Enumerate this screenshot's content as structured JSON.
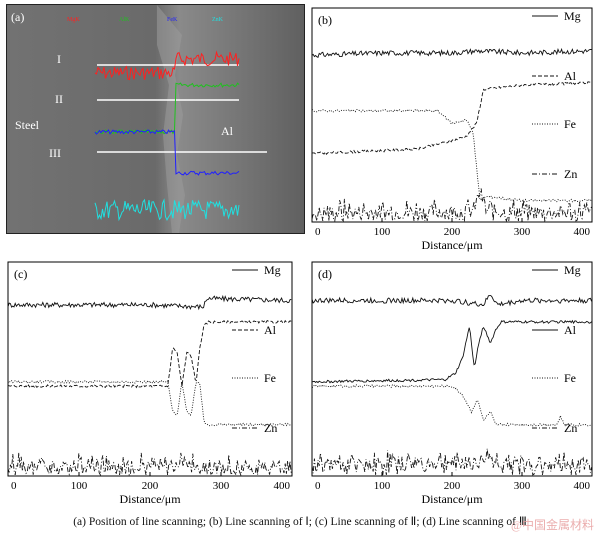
{
  "caption": "(a) Position of line scanning; (b) Line scanning of Ⅰ; (c) Line scanning of Ⅱ; (d) Line scanning of Ⅲ",
  "watermark": "@中国金属材料",
  "sem": {
    "label": "(a)",
    "legend": [
      "MgK",
      "AlK",
      "FeK",
      "ZnK"
    ],
    "legend_colors": [
      "#ff2020",
      "#20c020",
      "#2020ff",
      "#20e0e0"
    ],
    "left_label": "Steel",
    "right_label": "Al",
    "lines": [
      "I",
      "II",
      "III"
    ]
  },
  "chart_data": [
    {
      "type": "line",
      "label": "(b)",
      "xlabel": "Distance/μm",
      "xlim": [
        0,
        400
      ],
      "xticks": [
        0,
        100,
        200,
        300,
        400
      ],
      "series": [
        {
          "name": "Mg",
          "style": "solid",
          "x": [
            0,
            100,
            200,
            235,
            300,
            400
          ],
          "y": [
            0.78,
            0.79,
            0.79,
            0.8,
            0.79,
            0.8
          ]
        },
        {
          "name": "Al",
          "style": "dashed",
          "x": [
            0,
            150,
            200,
            220,
            235,
            245,
            300,
            400
          ],
          "y": [
            0.32,
            0.34,
            0.38,
            0.4,
            0.46,
            0.62,
            0.64,
            0.65
          ]
        },
        {
          "name": "Fe",
          "style": "dotted",
          "x": [
            0,
            180,
            200,
            220,
            230,
            240,
            250,
            300,
            400
          ],
          "y": [
            0.52,
            0.52,
            0.46,
            0.48,
            0.42,
            0.1,
            0.12,
            0.1,
            0.1
          ]
        },
        {
          "name": "Zn",
          "style": "dashdot",
          "x": [
            0,
            230,
            240,
            250,
            400
          ],
          "y": [
            0.04,
            0.05,
            0.14,
            0.05,
            0.04
          ]
        }
      ]
    },
    {
      "type": "line",
      "label": "(c)",
      "xlabel": "Distance/μm",
      "xlim": [
        0,
        400
      ],
      "xticks": [
        0,
        100,
        200,
        300,
        400
      ],
      "series": [
        {
          "name": "Mg",
          "style": "solid",
          "x": [
            0,
            100,
            200,
            275,
            280,
            400
          ],
          "y": [
            0.8,
            0.8,
            0.8,
            0.79,
            0.83,
            0.82
          ]
        },
        {
          "name": "Al",
          "style": "dashed",
          "x": [
            0,
            225,
            232,
            238,
            245,
            252,
            258,
            265,
            270,
            276,
            282,
            400
          ],
          "y": [
            0.42,
            0.42,
            0.6,
            0.58,
            0.42,
            0.58,
            0.56,
            0.43,
            0.6,
            0.7,
            0.72,
            0.72
          ]
        },
        {
          "name": "Fe",
          "style": "dotted",
          "x": [
            0,
            225,
            232,
            238,
            245,
            252,
            258,
            265,
            270,
            276,
            282,
            400
          ],
          "y": [
            0.44,
            0.44,
            0.3,
            0.28,
            0.44,
            0.3,
            0.28,
            0.44,
            0.44,
            0.25,
            0.24,
            0.24
          ]
        },
        {
          "name": "Zn",
          "style": "dashdot",
          "x": [
            0,
            400
          ],
          "y": [
            0.04,
            0.04
          ]
        }
      ]
    },
    {
      "type": "line",
      "label": "(d)",
      "xlabel": "Distance/μm",
      "xlim": [
        0,
        400
      ],
      "xticks": [
        0,
        100,
        200,
        300,
        400
      ],
      "series": [
        {
          "name": "Mg",
          "style": "solid",
          "x": [
            0,
            200,
            245,
            255,
            265,
            300,
            400
          ],
          "y": [
            0.82,
            0.82,
            0.8,
            0.85,
            0.8,
            0.82,
            0.82
          ]
        },
        {
          "name": "Al",
          "style": "solid",
          "x": [
            0,
            190,
            205,
            215,
            225,
            232,
            238,
            245,
            255,
            262,
            270,
            300,
            400
          ],
          "y": [
            0.44,
            0.45,
            0.48,
            0.55,
            0.7,
            0.5,
            0.62,
            0.7,
            0.62,
            0.68,
            0.72,
            0.72,
            0.72
          ]
        },
        {
          "name": "Fe",
          "style": "dotted",
          "x": [
            0,
            200,
            215,
            228,
            236,
            245,
            255,
            262,
            275,
            350,
            355,
            360,
            400
          ],
          "y": [
            0.42,
            0.42,
            0.38,
            0.3,
            0.36,
            0.26,
            0.3,
            0.24,
            0.24,
            0.24,
            0.28,
            0.24,
            0.24
          ]
        },
        {
          "name": "Zn",
          "style": "dashdot",
          "x": [
            0,
            240,
            250,
            260,
            400
          ],
          "y": [
            0.05,
            0.06,
            0.1,
            0.06,
            0.05
          ]
        }
      ]
    }
  ]
}
